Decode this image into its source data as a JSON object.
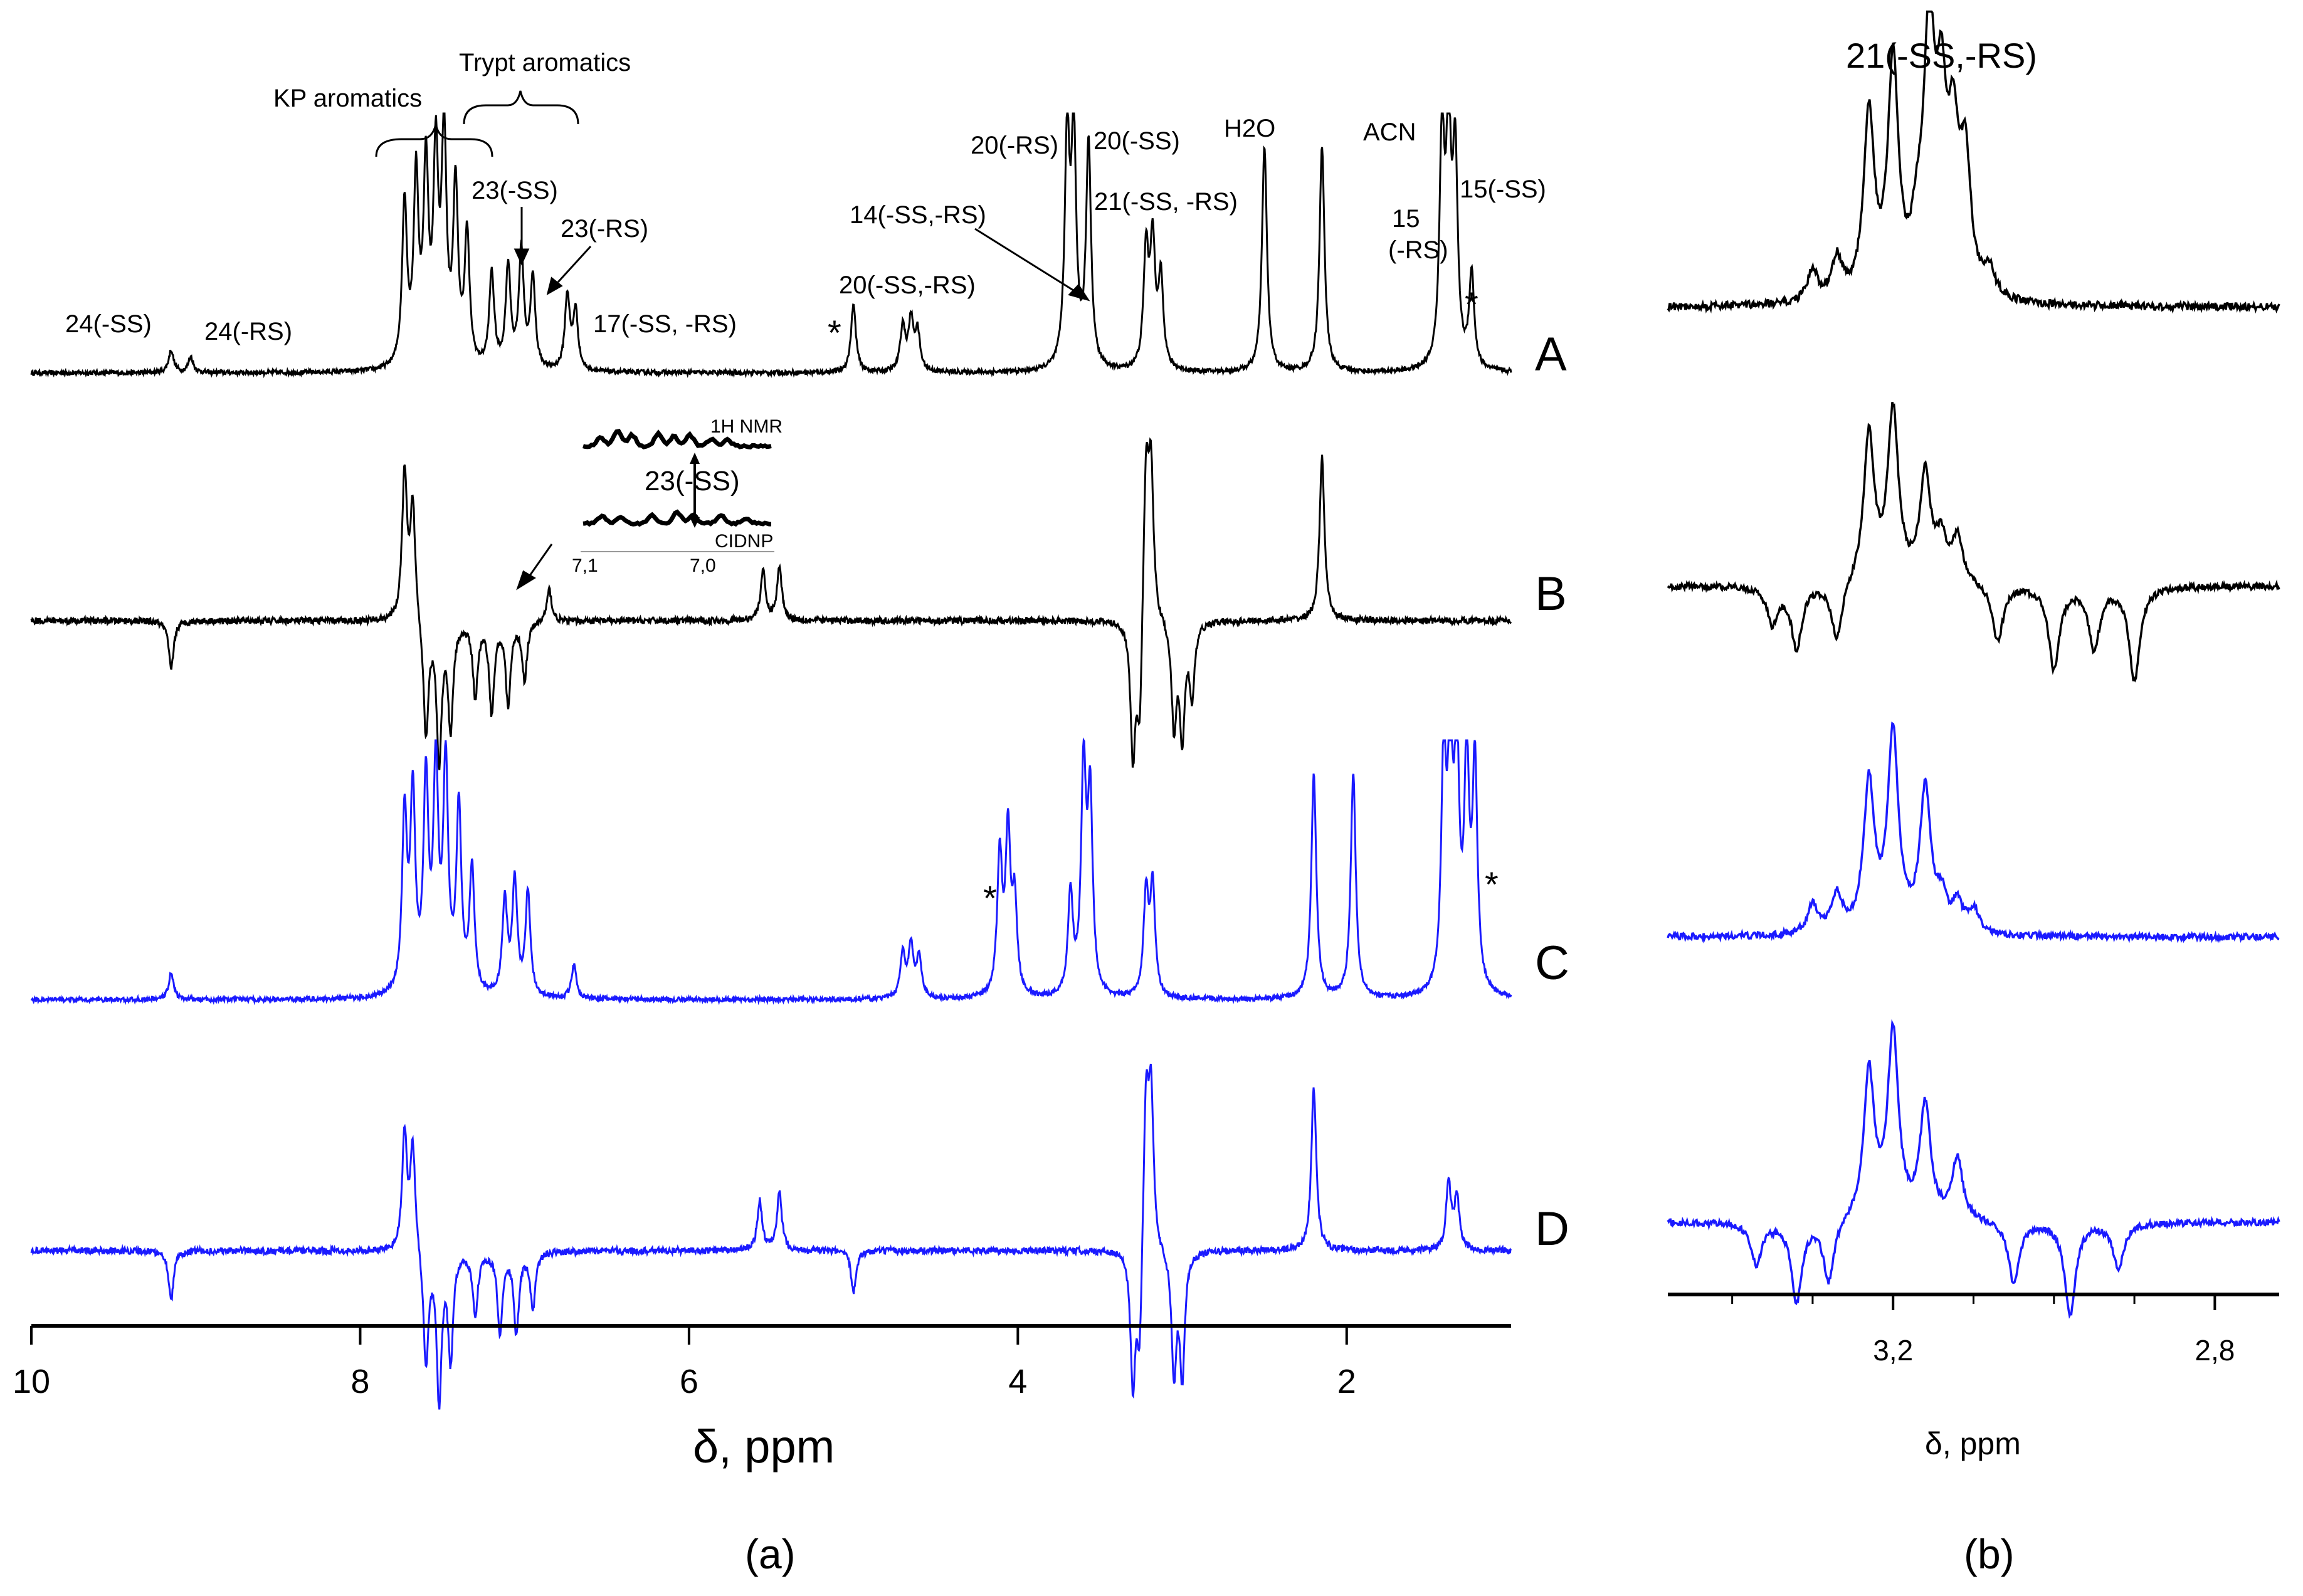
{
  "figure": {
    "panel_a_label": "(a)",
    "panel_b_label": "(b)"
  },
  "chart_data": [
    {
      "type": "line",
      "panel": "a",
      "xlabel": "δ, ppm",
      "xlim": [
        10,
        1
      ],
      "x_reversed": true,
      "x_ticks": [
        10,
        8,
        6,
        4,
        2
      ],
      "x_tick_labels": [
        "10",
        "8",
        "6",
        "4",
        "2"
      ],
      "rows": [
        "A",
        "B",
        "C",
        "D"
      ],
      "series_colors": {
        "A": "#000000",
        "B": "#000000",
        "C": "#1a1aff",
        "D": "#1a1aff"
      },
      "series": [
        {
          "name": "A",
          "peaks": [
            [
              9.15,
              0.1
            ],
            [
              9.03,
              0.07
            ],
            [
              7.73,
              0.72
            ],
            [
              7.66,
              0.82
            ],
            [
              7.6,
              0.86
            ],
            [
              7.54,
              0.9
            ],
            [
              7.49,
              1.0
            ],
            [
              7.42,
              0.78
            ],
            [
              7.35,
              0.58
            ],
            [
              7.2,
              0.42
            ],
            [
              7.1,
              0.45
            ],
            [
              7.02,
              0.52
            ],
            [
              6.95,
              0.4
            ],
            [
              6.74,
              0.33
            ],
            [
              6.69,
              0.26
            ],
            [
              5.0,
              0.3
            ],
            [
              4.7,
              0.2
            ],
            [
              4.65,
              0.22
            ],
            [
              4.61,
              0.17
            ],
            [
              3.7,
              1.0
            ],
            [
              3.66,
              1.0
            ],
            [
              3.57,
              1.0
            ],
            [
              3.22,
              0.52
            ],
            [
              3.18,
              0.55
            ],
            [
              3.13,
              0.4
            ],
            [
              2.5,
              1.0
            ],
            [
              2.15,
              1.0
            ],
            [
              1.42,
              1.0
            ],
            [
              1.38,
              1.0
            ],
            [
              1.34,
              0.9
            ],
            [
              1.24,
              0.42
            ]
          ]
        },
        {
          "name": "B",
          "peaks": [
            [
              9.15,
              -0.3
            ],
            [
              7.73,
              0.9
            ],
            [
              7.68,
              0.72
            ],
            [
              7.6,
              -0.72
            ],
            [
              7.52,
              -0.85
            ],
            [
              7.45,
              -0.65
            ],
            [
              7.3,
              -0.45
            ],
            [
              7.2,
              -0.55
            ],
            [
              7.1,
              -0.5
            ],
            [
              7.0,
              -0.35
            ],
            [
              6.85,
              0.2
            ],
            [
              5.55,
              0.3
            ],
            [
              5.45,
              0.32
            ],
            [
              3.22,
              1.0
            ],
            [
              3.19,
              0.92
            ],
            [
              3.3,
              -0.85
            ],
            [
              3.26,
              -0.7
            ],
            [
              3.05,
              -0.65
            ],
            [
              3.0,
              -0.7
            ],
            [
              2.94,
              -0.45
            ],
            [
              2.15,
              1.0
            ]
          ]
        },
        {
          "name": "C",
          "peaks": [
            [
              9.15,
              0.12
            ],
            [
              7.73,
              0.78
            ],
            [
              7.68,
              0.86
            ],
            [
              7.6,
              0.92
            ],
            [
              7.54,
              0.97
            ],
            [
              7.48,
              1.0
            ],
            [
              7.4,
              0.82
            ],
            [
              7.32,
              0.55
            ],
            [
              7.12,
              0.42
            ],
            [
              7.06,
              0.5
            ],
            [
              6.98,
              0.46
            ],
            [
              6.7,
              0.15
            ],
            [
              4.7,
              0.2
            ],
            [
              4.65,
              0.23
            ],
            [
              4.6,
              0.18
            ],
            [
              4.11,
              0.62
            ],
            [
              4.06,
              0.7
            ],
            [
              4.02,
              0.4
            ],
            [
              3.68,
              0.45
            ],
            [
              3.6,
              1.0
            ],
            [
              3.56,
              0.85
            ],
            [
              3.22,
              0.45
            ],
            [
              3.18,
              0.48
            ],
            [
              2.2,
              1.0
            ],
            [
              1.96,
              1.0
            ],
            [
              1.41,
              1.0
            ],
            [
              1.37,
              1.0
            ],
            [
              1.33,
              1.0
            ],
            [
              1.27,
              1.0
            ],
            [
              1.22,
              1.0
            ]
          ]
        },
        {
          "name": "D",
          "peaks": [
            [
              9.15,
              -0.3
            ],
            [
              7.73,
              0.72
            ],
            [
              7.68,
              0.65
            ],
            [
              7.6,
              -0.72
            ],
            [
              7.52,
              -0.9
            ],
            [
              7.45,
              -0.65
            ],
            [
              7.3,
              -0.4
            ],
            [
              7.15,
              -0.5
            ],
            [
              7.05,
              -0.5
            ],
            [
              6.95,
              -0.35
            ],
            [
              5.57,
              0.3
            ],
            [
              5.45,
              0.35
            ],
            [
              5.0,
              -0.25
            ],
            [
              3.22,
              1.0
            ],
            [
              3.19,
              0.95
            ],
            [
              3.3,
              -0.85
            ],
            [
              3.26,
              -0.65
            ],
            [
              3.05,
              -0.75
            ],
            [
              3.0,
              -0.75
            ],
            [
              2.2,
              1.0
            ],
            [
              1.38,
              0.4
            ],
            [
              1.33,
              0.32
            ]
          ]
        }
      ],
      "annotations": [
        "24(-SS)",
        "24(-RS)",
        "KP aromatics",
        "Trypt aromatics",
        "23(-SS)",
        "23(-RS)",
        "17(-SS, -RS)",
        "*",
        "20(-SS,-RS)",
        "14(-SS,-RS)",
        "20(-RS)",
        "20(-SS)",
        "21(-SS, -RS)",
        "H2O",
        "ACN",
        "15",
        "(-RS)",
        "15(-SS)",
        "*"
      ],
      "inset": {
        "top_label": "1H NMR",
        "middle_label": "23(-SS)",
        "bottom_label": "CIDNP",
        "x_tick_labels": [
          "7,1",
          "7,0"
        ]
      },
      "annotations_c": [
        "*",
        "*"
      ]
    },
    {
      "type": "line",
      "panel": "b",
      "title": "21(-SS,-RS)",
      "xlabel": "δ, ppm",
      "xlim": [
        3.48,
        2.72
      ],
      "x_reversed": true,
      "x_ticks": [
        3.2,
        2.8
      ],
      "x_tick_labels": [
        "3,2",
        "2,8"
      ],
      "rows": [
        "A",
        "B",
        "C",
        "D"
      ],
      "series_colors": {
        "A": "#000000",
        "B": "#000000",
        "C": "#1a1aff",
        "D": "#1a1aff"
      },
      "series": [
        {
          "name": "A",
          "peaks": [
            [
              3.3,
              0.12
            ],
            [
              3.27,
              0.16
            ],
            [
              3.23,
              0.72
            ],
            [
              3.2,
              0.9
            ],
            [
              3.17,
              0.2
            ],
            [
              3.155,
              1.0
            ],
            [
              3.14,
              0.65
            ],
            [
              3.125,
              0.55
            ],
            [
              3.11,
              0.5
            ],
            [
              3.08,
              0.1
            ]
          ]
        },
        {
          "name": "B",
          "peaks": [
            [
              3.23,
              0.72
            ],
            [
              3.2,
              0.82
            ],
            [
              3.16,
              0.52
            ],
            [
              3.14,
              0.2
            ],
            [
              3.12,
              0.22
            ],
            [
              3.35,
              -0.18
            ],
            [
              3.32,
              -0.3
            ],
            [
              3.27,
              -0.28
            ],
            [
              3.07,
              -0.28
            ],
            [
              3.0,
              -0.4
            ],
            [
              2.95,
              -0.3
            ],
            [
              2.9,
              -0.45
            ]
          ]
        },
        {
          "name": "C",
          "peaks": [
            [
              3.3,
              0.14
            ],
            [
              3.27,
              0.18
            ],
            [
              3.23,
              0.72
            ],
            [
              3.2,
              0.95
            ],
            [
              3.16,
              0.68
            ],
            [
              3.14,
              0.15
            ],
            [
              3.12,
              0.13
            ],
            [
              3.1,
              0.11
            ]
          ]
        },
        {
          "name": "D",
          "peaks": [
            [
              3.23,
              0.72
            ],
            [
              3.2,
              0.9
            ],
            [
              3.16,
              0.55
            ],
            [
              3.12,
              0.3
            ],
            [
              3.37,
              -0.2
            ],
            [
              3.32,
              -0.38
            ],
            [
              3.28,
              -0.3
            ],
            [
              3.05,
              -0.3
            ],
            [
              2.98,
              -0.45
            ],
            [
              2.92,
              -0.22
            ]
          ]
        }
      ]
    }
  ]
}
